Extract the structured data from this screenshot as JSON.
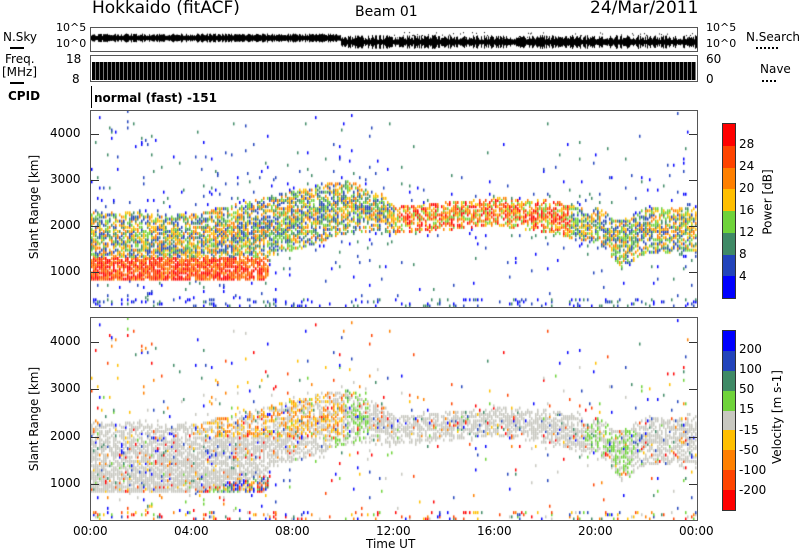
{
  "header": {
    "station": "Hokkaido (fitACF)",
    "beam": "Beam 01",
    "date": "24/Mar/2011"
  },
  "noise_panel": {
    "left_label": "N.Sky",
    "right_label": "N.Search",
    "left_ticks": [
      "10^5",
      "10^0"
    ],
    "right_ticks": [
      "10^5",
      "10^0"
    ]
  },
  "freq_panel": {
    "left_label_1": "Freq.",
    "left_label_2": "[MHz]",
    "right_label": "Nave",
    "left_ticks": [
      "18",
      "8"
    ],
    "right_ticks": [
      "60",
      "0"
    ]
  },
  "cpid": {
    "label": "CPID",
    "value": "normal (fast) -151"
  },
  "chart_data": [
    {
      "type": "heatmap",
      "name": "power",
      "ylabel": "Slant Range [km]",
      "xlabel": "Time UT",
      "ylim": [
        240,
        4500
      ],
      "yticks": [
        "1000",
        "2000",
        "3000",
        "4000"
      ],
      "colorbar": {
        "label": "Power [dB]",
        "ticks": [
          "28",
          "24",
          "20",
          "16",
          "12",
          "8",
          "4"
        ],
        "colors": [
          "#0000ff",
          "#2244bb",
          "#3f8a66",
          "#6fd33a",
          "#ffbf00",
          "#ff8000",
          "#ff4400",
          "#ff0000"
        ]
      }
    },
    {
      "type": "heatmap",
      "name": "velocity",
      "ylabel": "Slant Range [km]",
      "xlabel": "Time UT",
      "ylim": [
        240,
        4500
      ],
      "yticks": [
        "1000",
        "2000",
        "3000",
        "4000"
      ],
      "colorbar": {
        "label": "Velocity [m s-1]",
        "ticks": [
          "200",
          "100",
          "50",
          "15",
          "-15",
          "-50",
          "-100",
          "-200"
        ],
        "colors": [
          "#0000ff",
          "#2244bb",
          "#3f8a66",
          "#6fd33a",
          "#c8c8c0",
          "#ffbf00",
          "#ff8000",
          "#ff4400",
          "#ff0000"
        ]
      }
    }
  ],
  "x_axis": {
    "ticks": [
      "00:00",
      "04:00",
      "08:00",
      "12:00",
      "16:00",
      "20:00",
      "00:00"
    ],
    "label": "Time UT"
  }
}
